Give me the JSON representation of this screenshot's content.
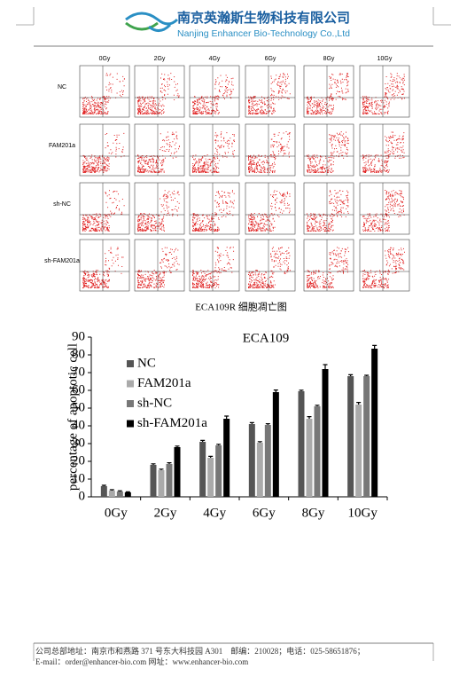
{
  "header": {
    "company_cn": "南京英瀚斯生物科技有限公司",
    "company_en": "Nanjing Enhancer Bio-Technology Co.,Ltd"
  },
  "flow_figure": {
    "columns": [
      "0Gy",
      "2Gy",
      "4Gy",
      "6Gy",
      "8Gy",
      "10Gy"
    ],
    "rows": [
      "NC",
      "FAM201a",
      "sh-NC",
      "sh-FAM201a"
    ],
    "caption": "ECA109R 细胞凋亡图"
  },
  "chart_data": {
    "type": "bar",
    "title": "ECA109",
    "y_label": "percentage of apoptotic cell",
    "categories": [
      "0Gy",
      "2Gy",
      "4Gy",
      "6Gy",
      "8Gy",
      "10Gy"
    ],
    "series": [
      {
        "name": "NC",
        "color": "#555555",
        "values": [
          6,
          18,
          31,
          41,
          59.5,
          68
        ],
        "errors": [
          0.5,
          0.6,
          0.8,
          0.8,
          0.6,
          0.8
        ]
      },
      {
        "name": "FAM201a",
        "color": "#aaaaaa",
        "values": [
          3.5,
          15,
          22,
          30.5,
          44,
          52
        ],
        "errors": [
          0.5,
          0.6,
          0.8,
          0.6,
          1.2,
          1.2
        ]
      },
      {
        "name": "sh-NC",
        "color": "#777777",
        "values": [
          3,
          18.5,
          29,
          40.5,
          51,
          68
        ],
        "errors": [
          0.4,
          0.7,
          0.6,
          0.7,
          0.6,
          0.5
        ]
      },
      {
        "name": "sh-FAM201a",
        "color": "#000000",
        "values": [
          2.5,
          28,
          44,
          59,
          72,
          83.5
        ],
        "errors": [
          0.3,
          0.6,
          1.5,
          1.2,
          2.5,
          1.8
        ]
      }
    ],
    "ylim": [
      0,
      90
    ],
    "yticks": [
      0,
      10,
      20,
      30,
      40,
      50,
      60,
      70,
      80,
      90
    ]
  },
  "footer": {
    "line1": "公司总部地址：南京市和燕路 371 号东大科技园 A301　邮编：210028；电话：025-58651876；",
    "line2": "E-mail：order@enhancer-bio.com 网址：www.enhancer-bio.com"
  }
}
